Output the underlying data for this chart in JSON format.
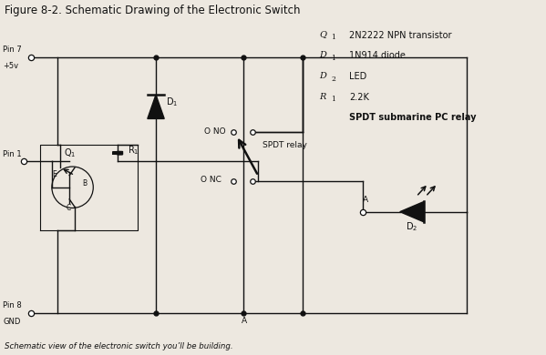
{
  "title": "Figure 8-2. Schematic Drawing of the Electronic Switch",
  "subtitle": "Schematic view of the electronic switch you’ll be building.",
  "legend_lines": [
    [
      "Q",
      "1",
      "2N2222 NPN transistor"
    ],
    [
      "D",
      "1",
      "1N914 diode"
    ],
    [
      "D",
      "2",
      "LED"
    ],
    [
      "R",
      "1",
      "2.2K"
    ],
    [
      "",
      "",
      "SPDT submarine PC relay"
    ]
  ],
  "bg_color": "#ede8e0",
  "line_color": "#111111",
  "font_color": "#111111"
}
